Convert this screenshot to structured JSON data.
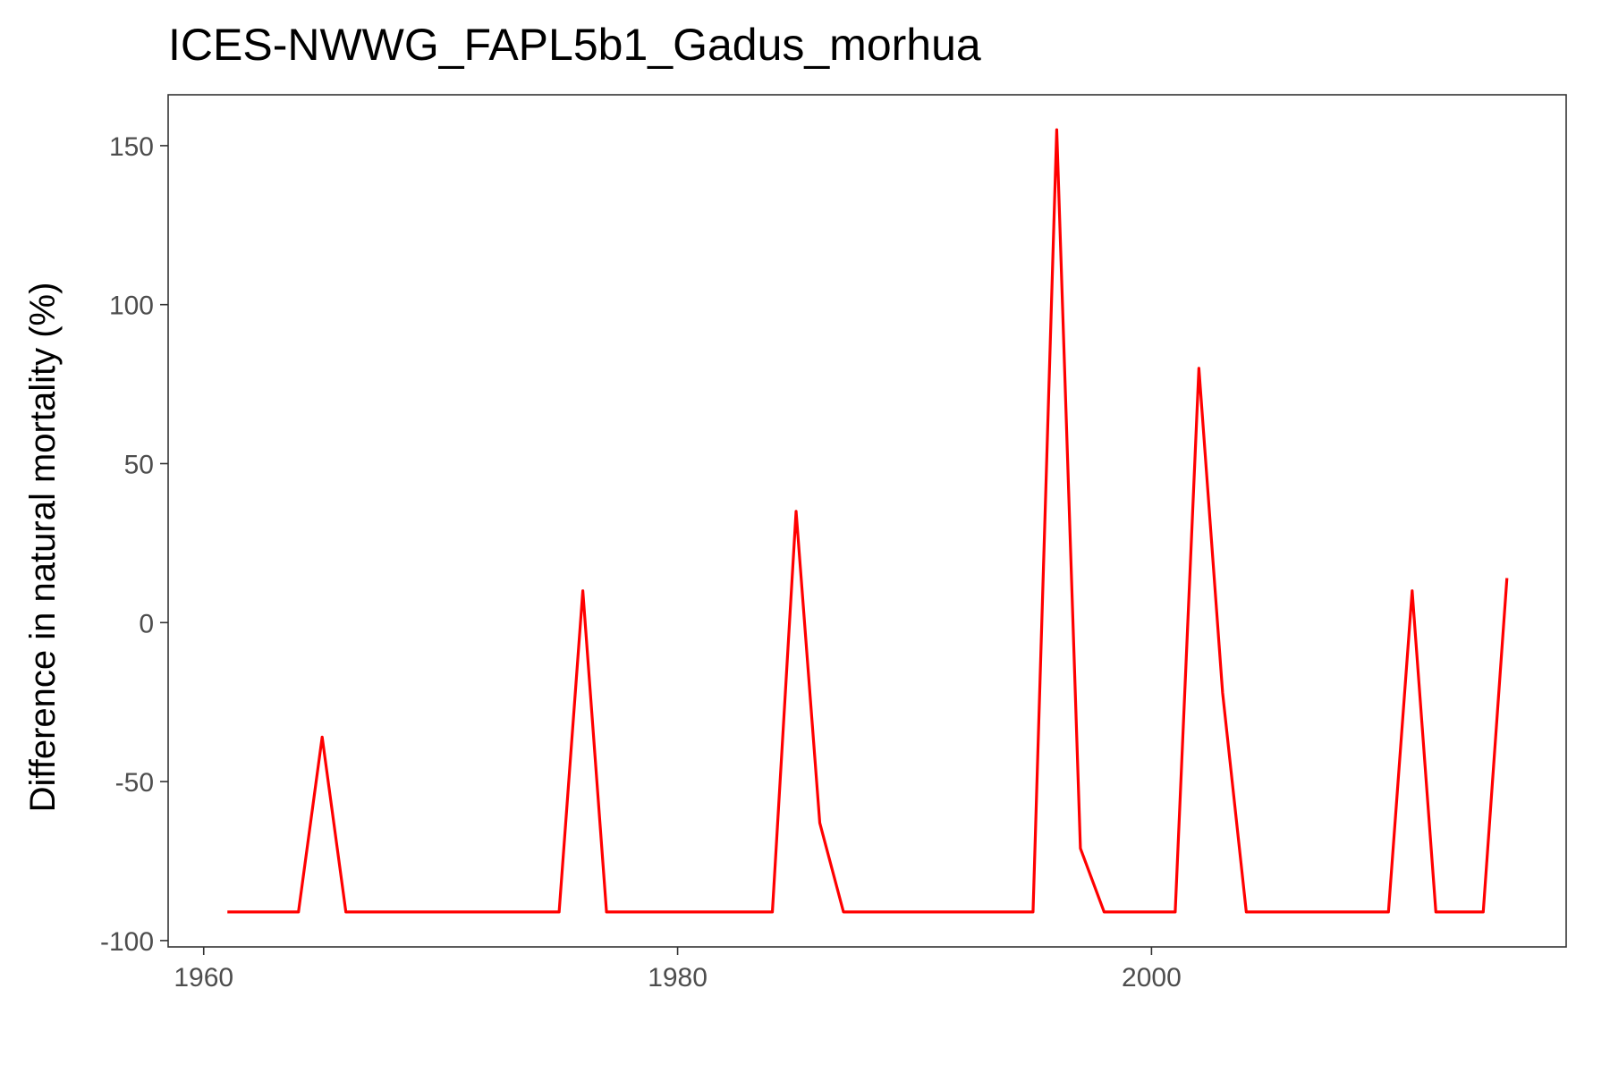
{
  "chart_data": {
    "type": "line",
    "title": "ICES-NWWG_FAPL5b1_Gadus_morhua",
    "xlabel": "",
    "ylabel": "Difference in natural mortality (%)",
    "xlim": [
      1958.5,
      2017.5
    ],
    "ylim": [
      -102,
      166
    ],
    "x_ticks": [
      1960,
      1980,
      2000
    ],
    "y_ticks": [
      -100,
      -50,
      0,
      50,
      100,
      150
    ],
    "x_tick_labels": [
      "1960",
      "1980",
      "2000"
    ],
    "y_tick_labels": [
      "-100",
      "-50",
      "0",
      "50",
      "100",
      "150"
    ],
    "grid": false,
    "legend": "none",
    "series": [
      {
        "color": "#ff0000",
        "x": [
          1961,
          1962,
          1963,
          1964,
          1965,
          1966,
          1967,
          1968,
          1969,
          1970,
          1971,
          1972,
          1973,
          1974,
          1975,
          1976,
          1977,
          1978,
          1979,
          1980,
          1981,
          1982,
          1983,
          1984,
          1985,
          1986,
          1987,
          1988,
          1989,
          1990,
          1991,
          1992,
          1993,
          1994,
          1995,
          1996,
          1997,
          1998,
          1999,
          2000,
          2001,
          2002,
          2003,
          2004,
          2005,
          2006,
          2007,
          2008,
          2009,
          2010,
          2011,
          2012,
          2013,
          2014,
          2015
        ],
        "y": [
          -91,
          -91,
          -91,
          -91,
          -36,
          -91,
          -91,
          -91,
          -91,
          -91,
          -91,
          -91,
          -91,
          -91,
          -91,
          10,
          -91,
          -91,
          -91,
          -91,
          -91,
          -91,
          -91,
          -91,
          35,
          -63,
          -91,
          -91,
          -91,
          -91,
          -91,
          -91,
          -91,
          -91,
          -91,
          155,
          -71,
          -91,
          -91,
          -91,
          -91,
          80,
          -22,
          -91,
          -91,
          -91,
          -91,
          -91,
          -91,
          -91,
          10,
          -91,
          -91,
          -91,
          14
        ]
      }
    ]
  }
}
